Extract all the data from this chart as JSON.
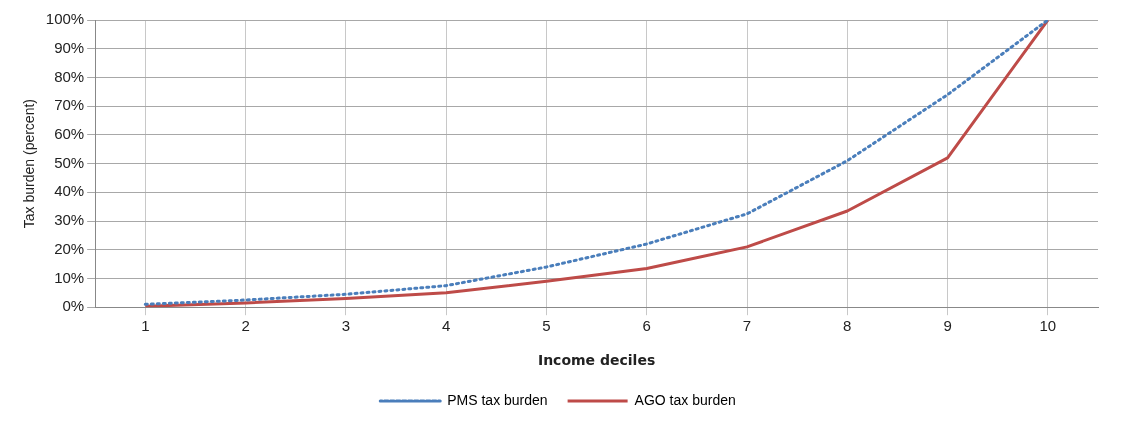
{
  "chart_data": {
    "type": "line",
    "xlabel": "Income deciles",
    "ylabel": "Tax burden (percent)",
    "categories": [
      "1",
      "2",
      "3",
      "4",
      "5",
      "6",
      "7",
      "8",
      "9",
      "10"
    ],
    "series": [
      {
        "name": "PMS tax burden",
        "color": "#4a7ebb",
        "line_style": "dotted",
        "values": [
          1,
          2.5,
          4.5,
          7.5,
          14,
          22,
          32.5,
          51,
          74,
          100
        ]
      },
      {
        "name": "AGO tax burden",
        "color": "#be4b48",
        "line_style": "solid",
        "values": [
          0.3,
          1.5,
          3,
          5,
          9,
          13.5,
          21,
          33.5,
          52,
          100
        ]
      }
    ],
    "ylim": [
      0,
      100
    ],
    "yticks": [
      {
        "value": 0,
        "label": "0%"
      },
      {
        "value": 10,
        "label": "10%"
      },
      {
        "value": 20,
        "label": "20%"
      },
      {
        "value": 30,
        "label": "30%"
      },
      {
        "value": 40,
        "label": "40%"
      },
      {
        "value": 50,
        "label": "50%"
      },
      {
        "value": 60,
        "label": "60%"
      },
      {
        "value": 70,
        "label": "70%"
      },
      {
        "value": 80,
        "label": "80%"
      },
      {
        "value": 90,
        "label": "90%"
      },
      {
        "value": 100,
        "label": "100%"
      }
    ],
    "grid": true,
    "legend": "bottom",
    "marker": "none"
  }
}
